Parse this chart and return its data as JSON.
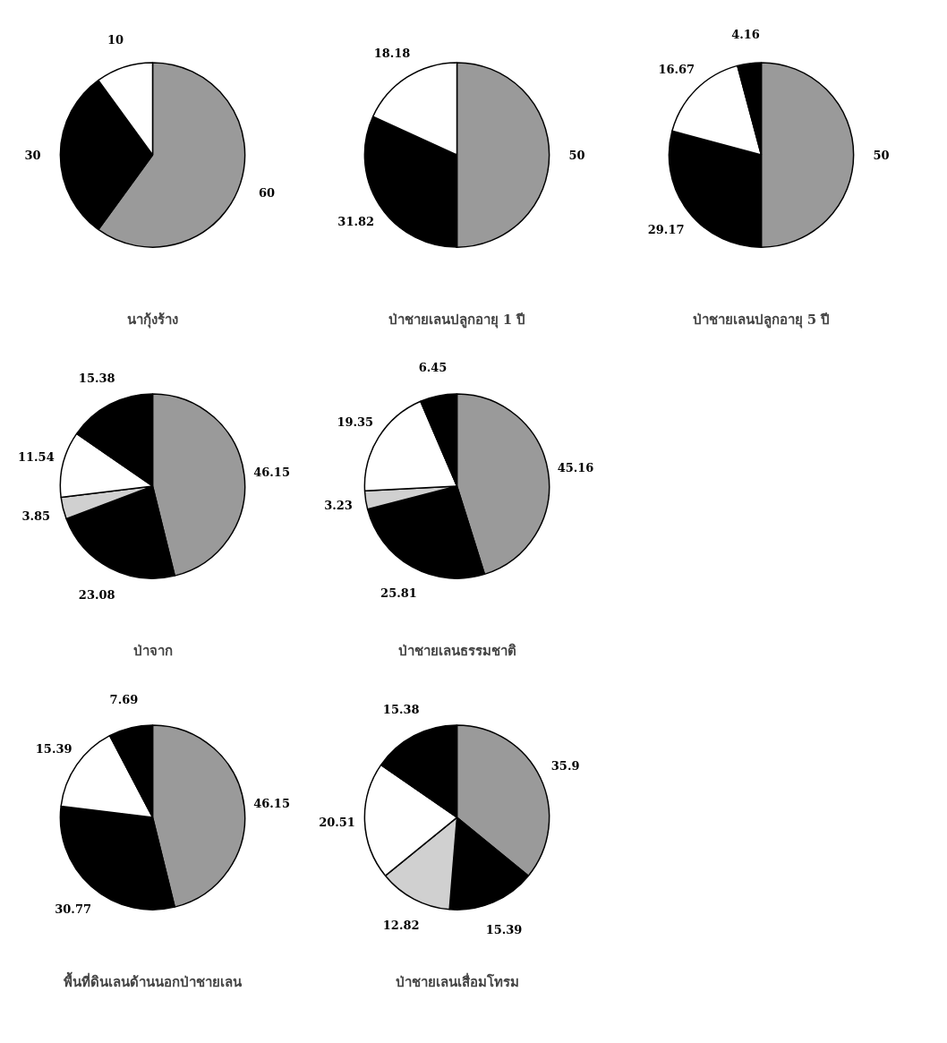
{
  "chart_data": [
    {
      "type": "pie",
      "title": "นากุ้งร้าง",
      "categories": [
        null,
        null,
        null
      ],
      "values": [
        60,
        30,
        10
      ],
      "colors": [
        "#9a9a9a",
        "#000000",
        "#ffffff"
      ],
      "data_labels": true
    },
    {
      "type": "pie",
      "title": "ป่าชายเลนปลูกอายุ 1 ปี",
      "categories": [
        null,
        null,
        null
      ],
      "values": [
        50,
        31.82,
        18.18
      ],
      "colors": [
        "#9a9a9a",
        "#000000",
        "#ffffff"
      ],
      "data_labels": true
    },
    {
      "type": "pie",
      "title": "ป่าชายเลนปลูกอายุ 5 ปี",
      "categories": [
        null,
        null,
        null,
        null
      ],
      "values": [
        50,
        29.17,
        16.67,
        4.16
      ],
      "colors": [
        "#9a9a9a",
        "#000000",
        "#ffffff",
        "#000000"
      ],
      "data_labels": true
    },
    {
      "type": "pie",
      "title": "ป่าจาก",
      "categories": [
        null,
        null,
        null,
        null,
        null
      ],
      "values": [
        46.15,
        23.08,
        3.85,
        11.54,
        15.38
      ],
      "colors": [
        "#9a9a9a",
        "#000000",
        "#d0d0d0",
        "#ffffff",
        "#000000"
      ],
      "data_labels": true
    },
    {
      "type": "pie",
      "title": "ป่าชายเลนธรรมชาติ",
      "categories": [
        null,
        null,
        null,
        null,
        null
      ],
      "values": [
        45.16,
        25.81,
        3.23,
        19.35,
        6.45
      ],
      "colors": [
        "#9a9a9a",
        "#000000",
        "#d0d0d0",
        "#ffffff",
        "#000000"
      ],
      "data_labels": true
    },
    {
      "type": "pie",
      "title": "พื้นที่ดินเลนด้านนอกป่าชายเลน",
      "categories": [
        null,
        null,
        null,
        null
      ],
      "values": [
        46.15,
        30.77,
        15.39,
        7.69
      ],
      "colors": [
        "#9a9a9a",
        "#000000",
        "#ffffff",
        "#000000"
      ],
      "data_labels": true
    },
    {
      "type": "pie",
      "title": "ป่าชายเลนเสื่อมโทรม",
      "categories": [
        null,
        null,
        null,
        null,
        null
      ],
      "values": [
        35.9,
        15.39,
        12.82,
        20.51,
        15.38
      ],
      "colors": [
        "#9a9a9a",
        "#000000",
        "#d0d0d0",
        "#ffffff",
        "#000000"
      ],
      "data_labels": true
    }
  ]
}
